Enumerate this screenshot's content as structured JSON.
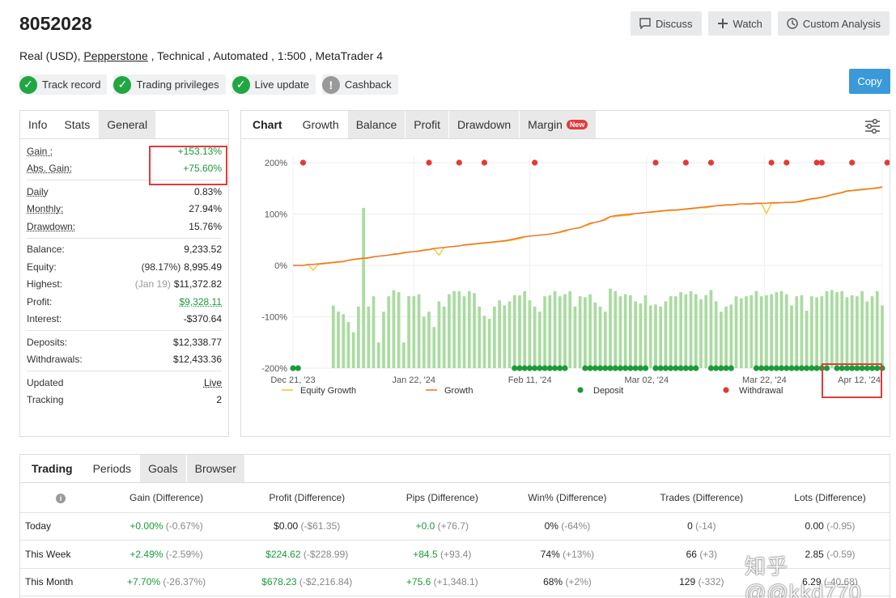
{
  "account": {
    "title": "8052028",
    "sub_prefix": "Real (USD), ",
    "broker": "Pepperstone",
    "sub_suffix": " , Technical , Automated , 1:500 , MetaTrader 4"
  },
  "top_buttons": {
    "discuss": "Discuss",
    "watch": "Watch",
    "custom": "Custom Analysis"
  },
  "copy_label": "Copy",
  "badges": [
    "Track record",
    "Trading privileges",
    "Live update",
    "Cashback"
  ],
  "info_tabs": [
    "Info",
    "Stats",
    "General"
  ],
  "stats": {
    "gain_label": "Gain :",
    "gain": "+153.13%",
    "abs_gain_label": "Abs. Gain:",
    "abs_gain": "+75.60%",
    "daily_label": "Daily",
    "daily": "0.83%",
    "monthly_label": "Monthly:",
    "monthly": "27.94%",
    "drawdown_label": "Drawdown:",
    "drawdown": "15.76%",
    "balance_label": "Balance:",
    "balance": "9,233.52",
    "equity_label": "Equity:",
    "equity_pct": "(98.17%)",
    "equity": "8,995.49",
    "highest_label": "Highest:",
    "highest_date": "(Jan 19)",
    "highest": "$11,372.82",
    "profit_label": "Profit:",
    "profit": "$9,328.11",
    "interest_label": "Interest:",
    "interest": "-$370.64",
    "deposits_label": "Deposits:",
    "deposits": "$12,338.77",
    "withdrawals_label": "Withdrawals:",
    "withdrawals": "$12,433.36",
    "updated_label": "Updated",
    "updated": "Live",
    "tracking_label": "Tracking",
    "tracking": "2"
  },
  "chart_tabs": [
    "Chart",
    "Growth",
    "Balance",
    "Profit",
    "Drawdown",
    "Margin"
  ],
  "new_badge": "New",
  "chart_data": {
    "type": "line",
    "ylim": [
      -200,
      200
    ],
    "ytick_labels": [
      "200%",
      "100%",
      "0%",
      "-100%",
      "-200%"
    ],
    "xtick_labels": [
      "Dec 21, '23",
      "Jan 22, '24",
      "Feb 11, '24",
      "Mar 02, '24",
      "Mar 22, '24",
      "Apr 12, '24"
    ],
    "legend": [
      "Equity Growth",
      "Growth",
      "Deposit",
      "Withdrawal"
    ],
    "colors": {
      "equity": "#f5c518",
      "growth": "#ef6f2e",
      "deposit": "#1c9a3a",
      "withdrawal": "#e53935",
      "bars": "#a9dca0"
    },
    "growth": [
      0,
      0,
      0,
      2,
      2,
      3,
      4,
      5,
      6,
      7,
      8,
      10,
      12,
      13,
      14,
      15,
      17,
      18,
      19,
      20,
      22,
      23,
      25,
      26,
      27,
      28,
      30,
      31,
      33,
      34,
      35,
      36,
      37,
      38,
      40,
      41,
      42,
      43,
      44,
      45,
      46,
      47,
      48,
      50,
      52,
      54,
      56,
      57,
      58,
      59,
      60,
      61,
      63,
      65,
      68,
      70,
      72,
      74,
      78,
      82,
      84,
      86,
      90,
      95,
      97,
      98,
      99,
      100,
      101,
      102,
      103,
      104,
      105,
      106,
      107,
      108,
      108,
      109,
      110,
      111,
      112,
      113,
      114,
      115,
      116,
      117,
      118,
      118,
      119,
      120,
      120,
      120,
      121,
      121,
      121,
      122,
      122,
      122,
      123,
      123,
      124,
      126,
      128,
      130,
      131,
      133,
      135,
      138,
      140,
      142,
      145,
      146,
      147,
      148,
      149,
      150,
      151,
      153
    ],
    "equity": [
      0,
      0,
      0,
      1,
      -9,
      2,
      3,
      4,
      5,
      6,
      7,
      10,
      11,
      12,
      13,
      14,
      16,
      18,
      19,
      20,
      21,
      22,
      24,
      26,
      27,
      27,
      29,
      30,
      32,
      20,
      35,
      36,
      37,
      38,
      39,
      40,
      41,
      42,
      43,
      44,
      45,
      46,
      47,
      48,
      50,
      52,
      55,
      57,
      58,
      59,
      60,
      61,
      62,
      64,
      66,
      70,
      72,
      73,
      77,
      80,
      84,
      86,
      88,
      95,
      95,
      96,
      97,
      98,
      101,
      101,
      103,
      103,
      104,
      105,
      106,
      107,
      107,
      108,
      109,
      110,
      111,
      112,
      112,
      114,
      116,
      116,
      117,
      117,
      118,
      120,
      119,
      119,
      120,
      120,
      101,
      121,
      121,
      122,
      122,
      122,
      123,
      124,
      127,
      129,
      130,
      132,
      134,
      137,
      139,
      141,
      144,
      145,
      146,
      147,
      148,
      149,
      150,
      152
    ],
    "bars": [
      0,
      0,
      0,
      0,
      0,
      0,
      0,
      0,
      -78,
      -90,
      -95,
      -110,
      -130,
      -80,
      112,
      -80,
      -60,
      -150,
      -90,
      -60,
      -48,
      -52,
      -150,
      -60,
      -60,
      -56,
      -100,
      -90,
      -120,
      -70,
      -80,
      -56,
      -50,
      -50,
      -60,
      -50,
      -54,
      -80,
      -98,
      -104,
      -80,
      -68,
      -78,
      -70,
      -58,
      -58,
      -50,
      -68,
      -80,
      -90,
      -60,
      -58,
      -50,
      -60,
      -56,
      -50,
      -80,
      -60,
      -62,
      -56,
      -72,
      -80,
      -90,
      -45,
      -50,
      -60,
      -56,
      -58,
      -70,
      -74,
      -58,
      -78,
      -76,
      -80,
      -70,
      -60,
      -60,
      -52,
      -56,
      -50,
      -56,
      -66,
      -58,
      -48,
      -70,
      -90,
      -80,
      -76,
      -60,
      -64,
      -60,
      -58,
      -50,
      -60,
      -58,
      -56,
      -52,
      -50,
      -56,
      -78,
      -60,
      -58,
      -88,
      -60,
      -62,
      -60,
      -50,
      -48,
      -52,
      -50,
      -62,
      -58,
      -60,
      -50,
      -70,
      -60,
      -50,
      -78
    ],
    "deposits_x": [
      0,
      1,
      44,
      45,
      46,
      47,
      48,
      49,
      50,
      51,
      52,
      53,
      54,
      58,
      59,
      60,
      61,
      62,
      63,
      64,
      65,
      66,
      67,
      68,
      69,
      70,
      72,
      73,
      74,
      75,
      76,
      77,
      78,
      79,
      80,
      83,
      84,
      85,
      86,
      87,
      92,
      93,
      94,
      95,
      96,
      97,
      98,
      99,
      100,
      101,
      102,
      103,
      104,
      105,
      106,
      108,
      109,
      110,
      111,
      112,
      113,
      114,
      115,
      116,
      117
    ],
    "withdrawals_x": [
      2,
      27,
      33,
      38,
      48,
      72,
      78,
      83,
      95,
      98,
      104,
      105,
      111,
      118
    ]
  },
  "period_tabs": [
    "Trading",
    "Periods",
    "Goals",
    "Browser"
  ],
  "period_headers": [
    "Gain (Difference)",
    "Profit (Difference)",
    "Pips (Difference)",
    "Win% (Difference)",
    "Trades (Difference)",
    "Lots (Difference)"
  ],
  "period_rows": [
    {
      "label": "Today",
      "gain": "+0.00%",
      "gain_d": "(-0.67%)",
      "profit": "$0.00",
      "profit_d": "(-$61.35)",
      "pips": "+0.0",
      "pips_d": "(+76.7)",
      "win": "0%",
      "win_d": "(-64%)",
      "trades": "0",
      "trades_d": "(-14)",
      "lots": "0.00",
      "lots_d": "(-0.95)"
    },
    {
      "label": "This Week",
      "gain": "+2.49%",
      "gain_d": "(-2.59%)",
      "profit": "$224.62",
      "profit_d": "(-$228.99)",
      "pips": "+84.5",
      "pips_d": "(+93.4)",
      "win": "74%",
      "win_d": "(+13%)",
      "trades": "66",
      "trades_d": "(+3)",
      "lots": "2.85",
      "lots_d": "(-0.59)"
    },
    {
      "label": "This Month",
      "gain": "+7.70%",
      "gain_d": "(-26.37%)",
      "profit": "$678.23",
      "profit_d": "(-$2,216.84)",
      "pips": "+75.6",
      "pips_d": "(+1,348.1)",
      "win": "68%",
      "win_d": "(+2%)",
      "trades": "129",
      "trades_d": "(-332)",
      "lots": "6.29",
      "lots_d": "(-40.68)"
    }
  ],
  "watermark": "知乎 @@kkd770"
}
